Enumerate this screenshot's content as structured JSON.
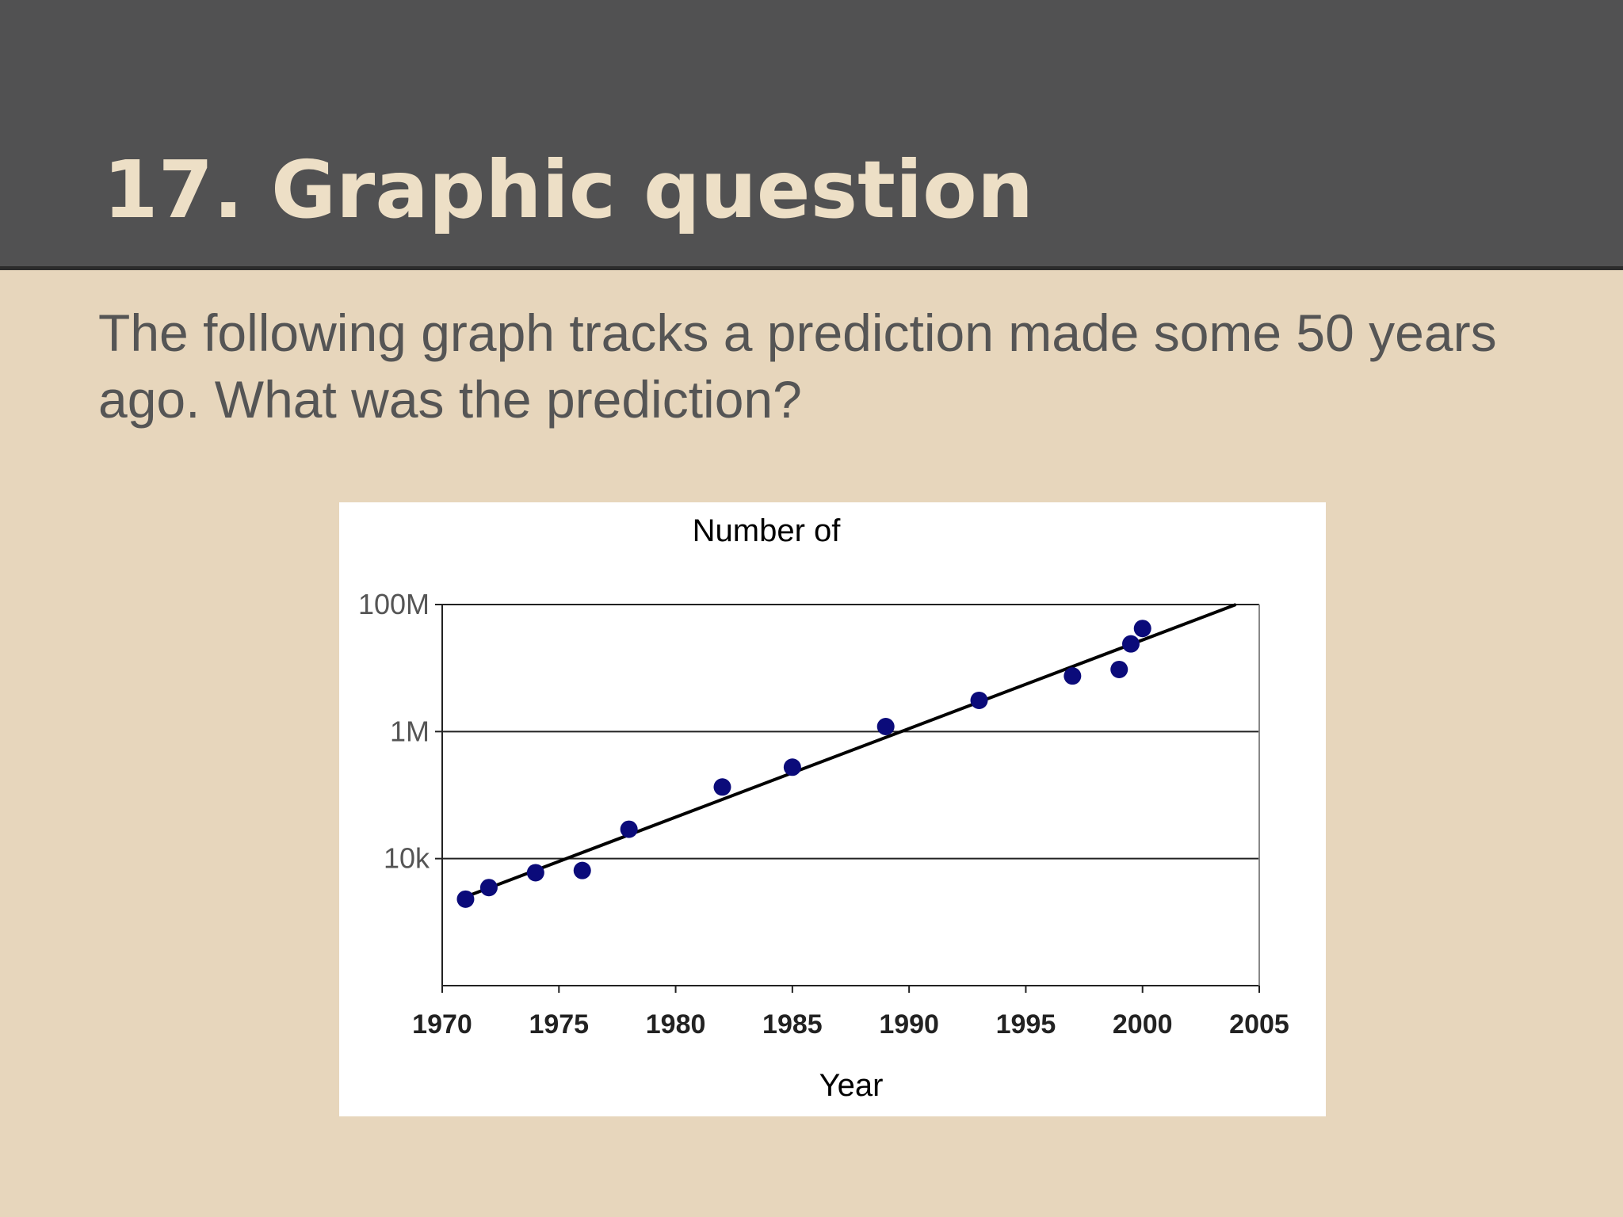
{
  "slide": {
    "title": "17. Graphic question",
    "body": "The following graph tracks a prediction made some 50 years ago. What was the prediction?"
  },
  "colors": {
    "header_background": "#515152",
    "slide_background": "#e7d6bc",
    "title_text": "#eddfc6",
    "body_text": "#555555",
    "point_color": "#0b0b7a",
    "trend_line": "#000000"
  },
  "chart_data": {
    "type": "scatter",
    "title": "Number of",
    "xlabel": "Year",
    "ylabel": "",
    "xlim": [
      1970,
      2005
    ],
    "x_ticks": [
      1970,
      1975,
      1980,
      1985,
      1990,
      1995,
      2000,
      2005
    ],
    "y_scale": "log",
    "ylim": [
      100,
      100000000
    ],
    "y_ticks": [
      {
        "value": 10000,
        "label": "10k"
      },
      {
        "value": 1000000,
        "label": "1M"
      },
      {
        "value": 100000000,
        "label": "100M"
      }
    ],
    "grid": "horizontal",
    "points": [
      {
        "x": 1971,
        "y": 2300
      },
      {
        "x": 1972,
        "y": 3500
      },
      {
        "x": 1974,
        "y": 6000
      },
      {
        "x": 1976,
        "y": 6500
      },
      {
        "x": 1978,
        "y": 29000
      },
      {
        "x": 1982,
        "y": 134000
      },
      {
        "x": 1985,
        "y": 275000
      },
      {
        "x": 1989,
        "y": 1200000
      },
      {
        "x": 1993,
        "y": 3100000
      },
      {
        "x": 1997,
        "y": 7500000
      },
      {
        "x": 1999,
        "y": 9500000
      },
      {
        "x": 1999.5,
        "y": 24000000
      },
      {
        "x": 2000,
        "y": 42000000
      }
    ],
    "trendline": [
      {
        "x": 1971,
        "y": 2500
      },
      {
        "x": 2004,
        "y": 100000000
      }
    ]
  }
}
